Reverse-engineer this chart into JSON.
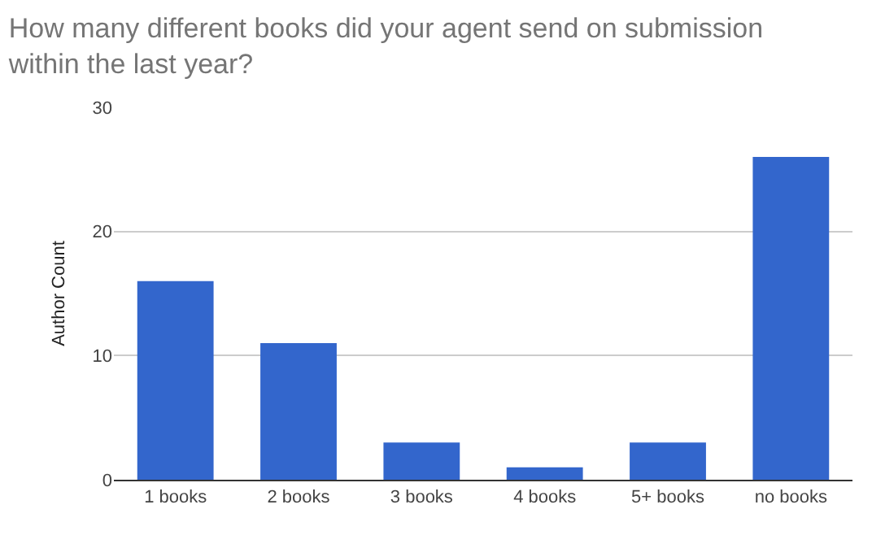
{
  "chart_data": {
    "type": "bar",
    "title": "How many different books did your agent send on submission within the last year?",
    "ylabel": "Author Count",
    "categories": [
      "1 books",
      "2 books",
      "3 books",
      "4 books",
      "5+ books",
      "no books"
    ],
    "values": [
      16,
      11,
      3,
      1,
      3,
      26
    ],
    "color": "#3366cc",
    "ylim": [
      0,
      30
    ],
    "yticks": [
      0,
      10,
      20,
      30
    ],
    "grid": "y"
  }
}
